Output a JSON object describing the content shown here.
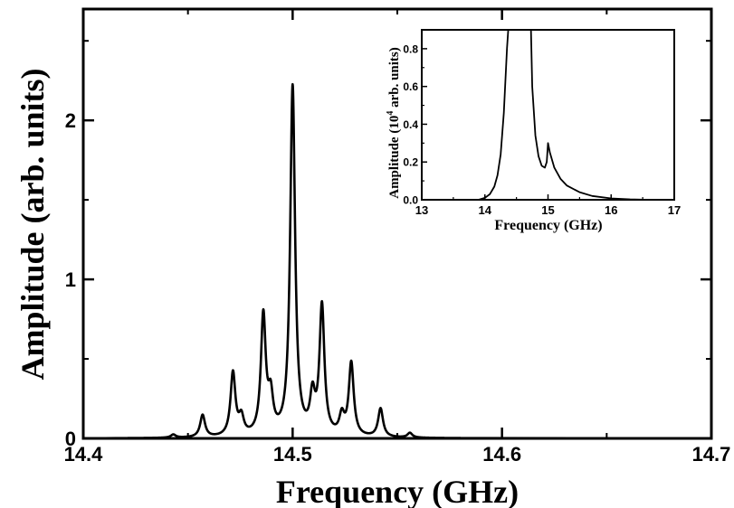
{
  "chart_data": [
    {
      "type": "line",
      "xlabel": "Frequency (GHz)",
      "ylabel": "Amplitude (arb. units)",
      "xlim": [
        14.4,
        14.7
      ],
      "ylim": [
        0,
        2.7
      ],
      "xticks": [
        "14.4",
        "14.5",
        "14.6",
        "14.7"
      ],
      "yticks": [
        "0",
        "1",
        "2"
      ],
      "xtick_values": [
        14.4,
        14.5,
        14.6,
        14.7
      ],
      "ytick_values": [
        0,
        1,
        2
      ],
      "peaks": [
        {
          "x": 14.443,
          "y": 0.02
        },
        {
          "x": 14.457,
          "y": 0.14
        },
        {
          "x": 14.4715,
          "y": 0.4
        },
        {
          "x": 14.4755,
          "y": 0.11
        },
        {
          "x": 14.486,
          "y": 0.75
        },
        {
          "x": 14.4895,
          "y": 0.22
        },
        {
          "x": 14.5,
          "y": 2.2
        },
        {
          "x": 14.5095,
          "y": 0.23
        },
        {
          "x": 14.514,
          "y": 0.81
        },
        {
          "x": 14.5235,
          "y": 0.12
        },
        {
          "x": 14.528,
          "y": 0.46
        },
        {
          "x": 14.542,
          "y": 0.18
        },
        {
          "x": 14.556,
          "y": 0.03
        }
      ],
      "peak_width_ghz": 0.0014,
      "grid": false
    },
    {
      "type": "line",
      "xlabel": "Frequency (GHz)",
      "ylabel_prefix": "Amplitude (10",
      "ylabel_exp": "4",
      "ylabel_suffix": " arb. units)",
      "xlim": [
        13,
        17
      ],
      "ylim": [
        0,
        0.9
      ],
      "xticks": [
        "13",
        "14",
        "15",
        "16",
        "17"
      ],
      "yticks": [
        "0.0",
        "0.2",
        "0.4",
        "0.6",
        "0.8"
      ],
      "xtick_values": [
        13,
        14,
        15,
        16,
        17
      ],
      "ytick_values": [
        0,
        0.2,
        0.4,
        0.6,
        0.8
      ],
      "x": [
        13.9,
        14.0,
        14.08,
        14.15,
        14.2,
        14.25,
        14.3,
        14.35,
        14.37,
        14.4,
        14.5,
        14.6,
        14.7,
        14.73,
        14.75,
        14.8,
        14.85,
        14.9,
        14.95,
        14.98,
        15.0,
        15.03,
        15.1,
        15.2,
        15.3,
        15.5,
        15.7,
        16.0,
        16.3,
        16.6
      ],
      "y": [
        0.0,
        0.01,
        0.03,
        0.07,
        0.13,
        0.24,
        0.46,
        0.8,
        0.9,
        0.9,
        0.9,
        0.9,
        0.9,
        0.9,
        0.6,
        0.34,
        0.23,
        0.18,
        0.17,
        0.2,
        0.3,
        0.25,
        0.17,
        0.11,
        0.075,
        0.04,
        0.02,
        0.007,
        0.002,
        0.0
      ],
      "grid": false
    }
  ]
}
